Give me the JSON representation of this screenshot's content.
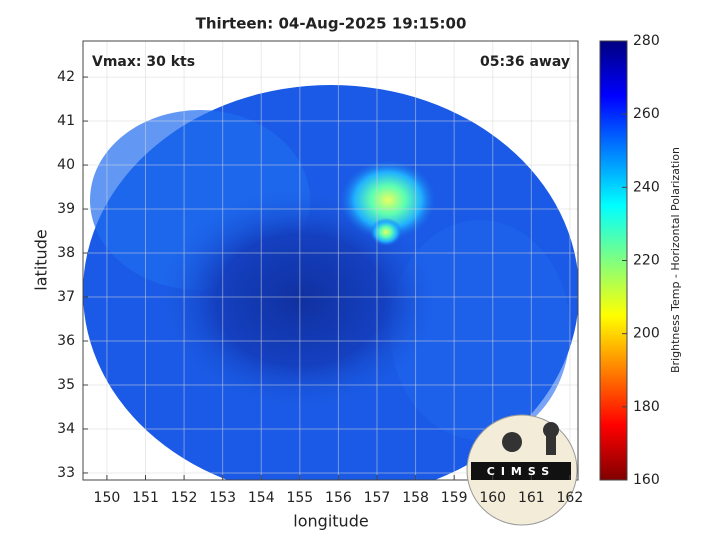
{
  "chart_data": {
    "type": "image",
    "title": "Thirteen: 04-Aug-2025 19:15:00",
    "x_label": "longitude",
    "y_label": "latitude",
    "xlim": [
      149.38,
      162.21
    ],
    "ylim": [
      32.84,
      42.82
    ],
    "xticks": [
      150,
      151,
      152,
      153,
      154,
      155,
      156,
      157,
      158,
      159,
      160,
      161,
      162
    ],
    "yticks": [
      33,
      34,
      35,
      36,
      37,
      38,
      39,
      40,
      41,
      42
    ],
    "grid": true,
    "colorbar": {
      "label": "Brightness Temp - Horizontal Polarization",
      "clim": [
        160,
        280
      ],
      "ticks": [
        160,
        180,
        200,
        220,
        240,
        260,
        280
      ],
      "colormap": [
        "#800000",
        "#ff0000",
        "#ff8000",
        "#ffff00",
        "#80ff80",
        "#00ffff",
        "#0080ff",
        "#0000ff",
        "#000080"
      ]
    },
    "annotations": [
      "Vmax: 30 kts",
      "05:36 away"
    ],
    "logo": "CIMSS"
  }
}
